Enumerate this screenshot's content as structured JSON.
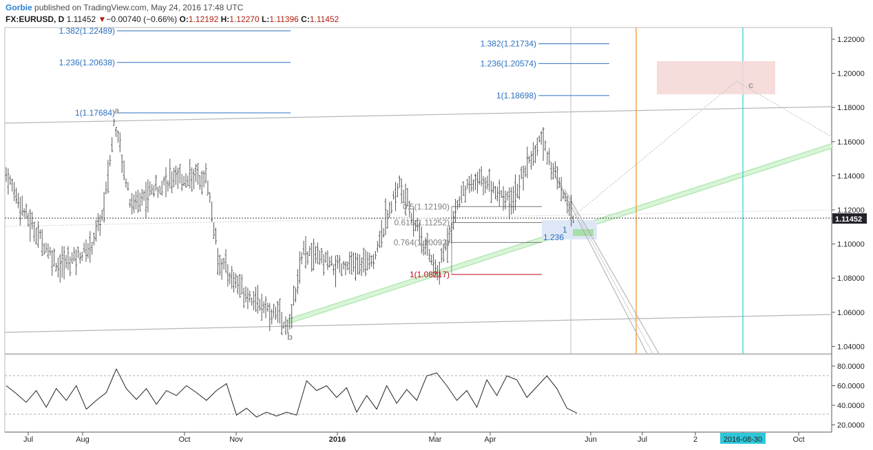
{
  "header": {
    "author": "Gorbie",
    "published_text": "published on TradingView.com, May 24, 2016 17:48 UTC",
    "symbol": "FX:EURUSD, D",
    "last_value": "1.11452",
    "change": "−0.00740 (−0.66%)",
    "o_label": "O:",
    "o_value": "1.12192",
    "h_label": "H:",
    "h_value": "1.12270",
    "l_label": "L:",
    "l_value": "1.11396",
    "c_label": "C:",
    "c_value": "1.11452"
  },
  "colors": {
    "fib_blue": "#2b6fbf",
    "fib_gray": "#7f7f7f",
    "fib_red": "#c0001a",
    "orange_line": "#f28c1a",
    "cyan_line": "#2ec7d9",
    "price_tag": "#22222a",
    "date_tag": "#2ec7d9",
    "channel_green": "#9be39b",
    "target_box": "#f6d8d8"
  },
  "chart_data": [
    {
      "type": "bar",
      "subtype": "ohlc",
      "symbol": "EURUSD",
      "timeframe": "Daily",
      "y_axis_ticks": [
        "1.22000",
        "1.20000",
        "1.18000",
        "1.16000",
        "1.14000",
        "1.12000",
        "1.10000",
        "1.08000",
        "1.06000",
        "1.04000"
      ],
      "ylim": [
        1.035,
        1.225
      ],
      "x_axis_ticks": [
        "Jul",
        "Aug",
        "Oct",
        "Nov",
        "2016",
        "Mar",
        "Apr",
        "Jun",
        "Jul",
        "2",
        "2016-08-30",
        "Oct"
      ],
      "current_price_label": "1.11452",
      "highlighted_date": "2016-08-30",
      "fib_levels_left": [
        {
          "label": "1.382(1.22489)",
          "value": 1.22489
        },
        {
          "label": "1.236(1.20638)",
          "value": 1.20638
        },
        {
          "label": "1(1.17684)",
          "value": 1.17684
        }
      ],
      "fib_levels_right": [
        {
          "label": "1.382(1.21734)",
          "value": 1.21734
        },
        {
          "label": "1.236(1.20574)",
          "value": 1.20574
        },
        {
          "label": "1(1.18698)",
          "value": 1.18698
        }
      ],
      "fib_retracement": [
        {
          "label": "0.5(1.12190)",
          "value": 1.1219
        },
        {
          "label": "0.618(1.11252)",
          "value": 1.11252
        },
        {
          "label": "0.764(1.10092)",
          "value": 1.10092
        },
        {
          "label": "1(1.08217)",
          "value": 1.08217
        }
      ],
      "projection_labels": [
        "1",
        "1.236"
      ],
      "wave_labels": [
        "a",
        "b",
        "c"
      ],
      "anchors": [
        {
          "date": "2015-08-24",
          "price": 1.1714
        },
        {
          "date": "2015-12-03",
          "price": 1.0524
        },
        {
          "date": "2016-05-03",
          "price": 1.1616
        },
        {
          "date": "2016-05-24",
          "price": 1.1145
        }
      ]
    },
    {
      "type": "line",
      "name": "oscillator",
      "y_axis_ticks": [
        "80.0000",
        "60.0000",
        "40.0000",
        "20.0000"
      ],
      "ylim": [
        15,
        90
      ],
      "reference_levels": [
        70,
        30
      ],
      "approx_values": [
        60,
        52,
        43,
        55,
        38,
        57,
        45,
        60,
        36,
        45,
        53,
        77,
        57,
        46,
        57,
        41,
        55,
        50,
        60,
        53,
        45,
        55,
        62,
        30,
        37,
        28,
        33,
        29,
        33,
        30,
        65,
        55,
        60,
        48,
        58,
        33,
        50,
        36,
        60,
        42,
        56,
        45,
        70,
        73,
        60,
        45,
        55,
        38,
        66,
        50,
        70,
        66,
        48,
        59,
        70,
        57,
        37,
        32
      ]
    }
  ]
}
